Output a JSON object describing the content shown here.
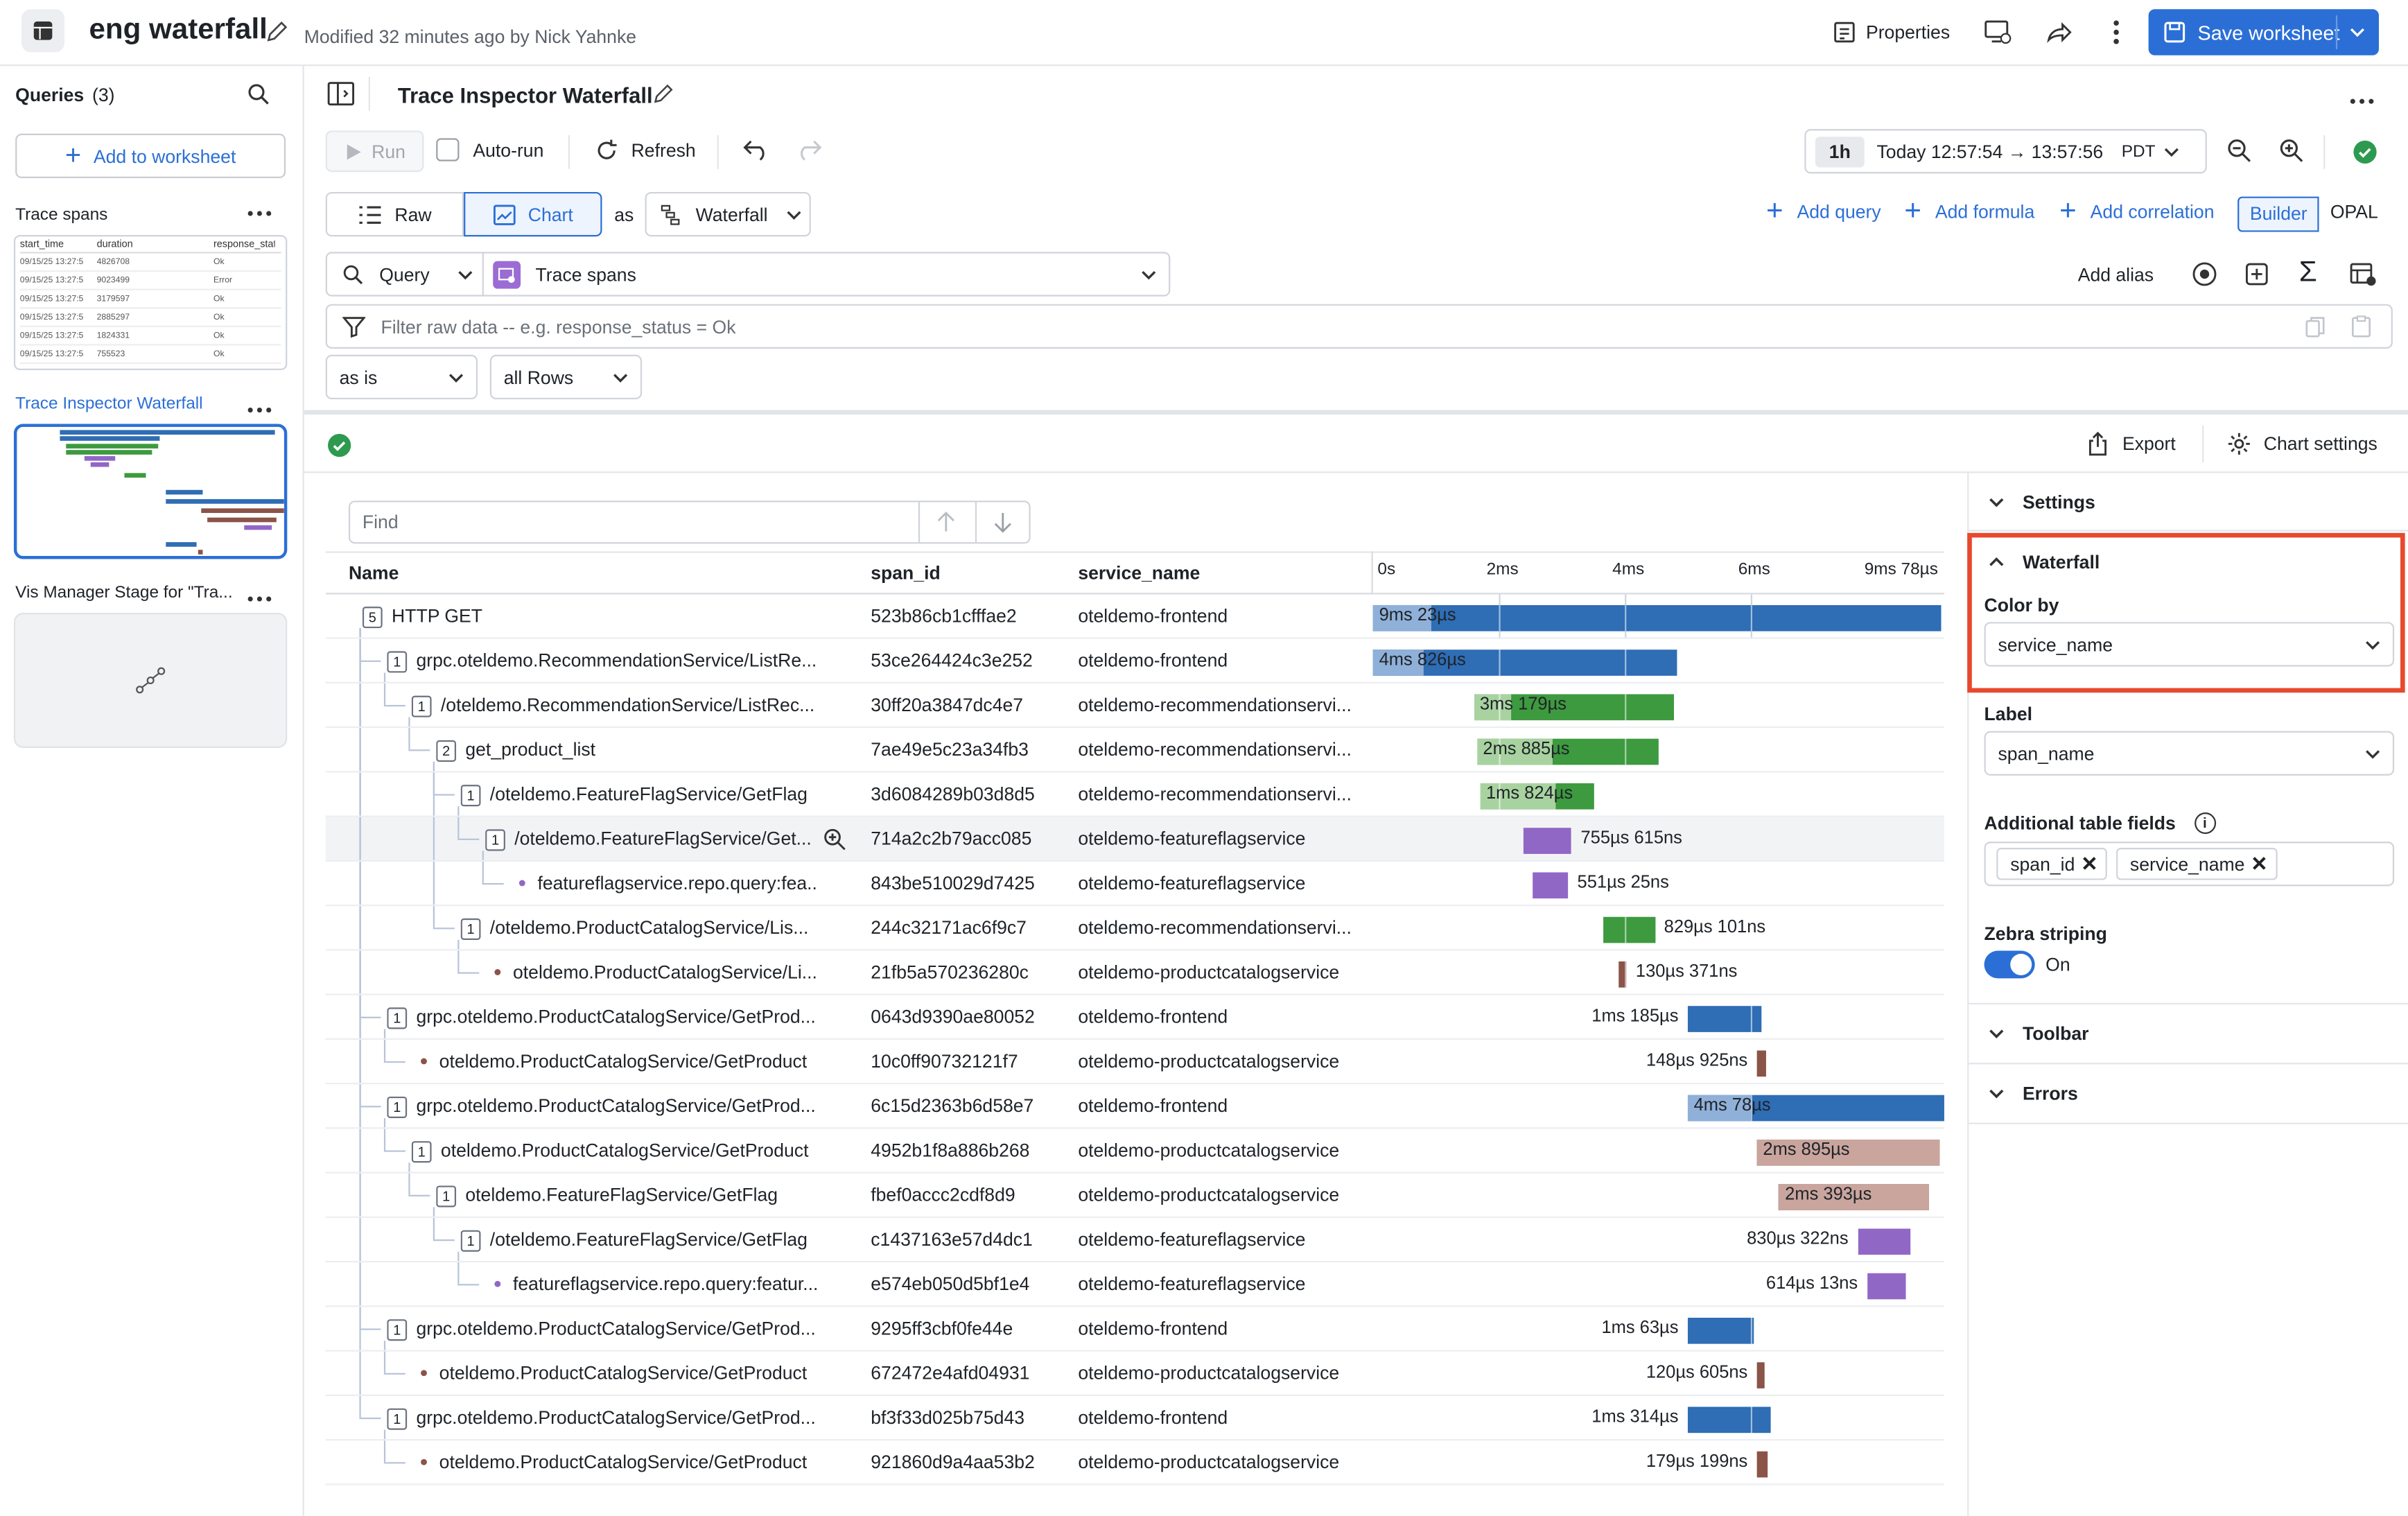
{
  "topbar": {
    "title": "eng waterfall",
    "modified": "Modified 32 minutes ago by Nick Yahnke",
    "properties": "Properties",
    "save": "Save worksheet"
  },
  "sidebar": {
    "queries_label": "Queries",
    "queries_count": "(3)",
    "add_to_worksheet": "Add to worksheet",
    "items": [
      {
        "label": "Trace spans"
      },
      {
        "label": "Trace Inspector Waterfall"
      },
      {
        "label": "Vis Manager Stage for \"Tra..."
      }
    ],
    "thumb_table": {
      "headers": [
        "start_time",
        "duration",
        "response_status"
      ],
      "rows": [
        [
          "09/15/25 13:27:5",
          "4826708",
          "Ok"
        ],
        [
          "09/15/25 13:27:5",
          "9023499",
          "Error"
        ],
        [
          "09/15/25 13:27:5",
          "3179597",
          "Ok"
        ],
        [
          "09/15/25 13:27:5",
          "2885297",
          "Ok"
        ],
        [
          "09/15/25 13:27:5",
          "1824331",
          "Ok"
        ],
        [
          "09/15/25 13:27:5",
          "755523",
          "Ok"
        ]
      ]
    }
  },
  "panel": {
    "title": "Trace Inspector Waterfall",
    "run": "Run",
    "autorun": "Auto-run",
    "refresh": "Refresh",
    "time_range_pill": "1h",
    "time_range": "Today 12:57:54 → 13:57:56",
    "timezone": "PDT",
    "raw": "Raw",
    "chart": "Chart",
    "as": "as",
    "viz_type": "Waterfall",
    "add_query": "Add query",
    "add_formula": "Add formula",
    "add_correlation": "Add correlation",
    "builder": "Builder",
    "opal": "OPAL",
    "query_label": "Query",
    "source": "Trace spans",
    "add_alias": "Add alias",
    "filter_placeholder": "Filter raw data -- e.g. response_status = Ok",
    "as_is": "as is",
    "all_rows": "all Rows",
    "export": "Export",
    "chart_settings": "Chart settings",
    "find_placeholder": "Find"
  },
  "table": {
    "headers": [
      "Name",
      "span_id",
      "service_name"
    ],
    "time_ticks": [
      "0s",
      "2ms",
      "4ms",
      "6ms",
      "9ms 78µs"
    ],
    "rows": [
      {
        "count": "5",
        "name": "HTTP GET",
        "span_id": "523b86cb1cfffae2",
        "service": "oteldemo-frontend",
        "start": 0,
        "dur": 9.023,
        "self": 0.23,
        "label": "9ms 23µs",
        "color": "#2f6db5",
        "light": "#8fb0d8"
      },
      {
        "count": "1",
        "name": "grpc.oteldemo.RecommendationService/ListRe...",
        "span_id": "53ce264424c3e252",
        "service": "oteldemo-frontend",
        "start": 0,
        "dur": 4.826,
        "self": 0.2,
        "label": "4ms 826µs",
        "color": "#2f6db5",
        "light": "#8fb0d8"
      },
      {
        "count": "1",
        "name": "/oteldemo.RecommendationService/ListRec...",
        "span_id": "30ff20a3847dc4e7",
        "service": "oteldemo-recommendationservi...",
        "start": 1.6,
        "dur": 3.179,
        "self": 0.15,
        "label": "3ms 179µs",
        "color": "#3d9a3f",
        "light": "#a8d3a0"
      },
      {
        "count": "2",
        "name": "get_product_list",
        "span_id": "7ae49e5c23a34fb3",
        "service": "oteldemo-recommendationservi...",
        "start": 1.65,
        "dur": 2.885,
        "self": 0.3,
        "label": "2ms 885µs",
        "color": "#3d9a3f",
        "light": "#a8d3a0"
      },
      {
        "count": "1",
        "name": "/oteldemo.FeatureFlagService/GetFlag",
        "span_id": "3d6084289b03d8d5",
        "service": "oteldemo-recommendationservi...",
        "start": 1.7,
        "dur": 1.824,
        "self": 0.3,
        "label": "1ms 824µs",
        "color": "#3d9a3f",
        "light": "#a8d3a0"
      },
      {
        "count": "1",
        "name": "/oteldemo.FeatureFlagService/Get...",
        "span_id": "714a2c2b79acc085",
        "service": "oteldemo-featureflagservice",
        "start": 2.4,
        "dur": 0.755,
        "self": 0,
        "label": "755µs 615ns",
        "color": "#9167c6",
        "light": "#c9b3e6"
      },
      {
        "count": "",
        "name": "featureflagservice.repo.query:fea...",
        "span_id": "843be510029d7425",
        "service": "oteldemo-featureflagservice",
        "start": 2.55,
        "dur": 0.551,
        "self": 0,
        "label": "551µs 25ns",
        "color": "#9167c6",
        "light": "#c9b3e6"
      },
      {
        "count": "1",
        "name": "/oteldemo.ProductCatalogService/Lis...",
        "span_id": "244c32171ac6f9c7",
        "service": "oteldemo-recommendationservi...",
        "start": 3.65,
        "dur": 0.829,
        "self": 0,
        "label": "829µs 101ns",
        "color": "#3d9a3f",
        "light": "#a8d3a0"
      },
      {
        "count": "",
        "name": "oteldemo.ProductCatalogService/Li...",
        "span_id": "21fb5a570236280c",
        "service": "oteldemo-productcatalogservice",
        "start": 3.9,
        "dur": 0.13,
        "self": 0,
        "label": "130µs 371ns",
        "color": "#8b5449",
        "light": "#c9a59d"
      },
      {
        "count": "1",
        "name": "grpc.oteldemo.ProductCatalogService/GetProd...",
        "span_id": "0643d9390ae80052",
        "service": "oteldemo-frontend",
        "start": 5.0,
        "dur": 1.185,
        "self": 0,
        "label": "1ms 185µs",
        "color": "#2f6db5",
        "light": "#8fb0d8"
      },
      {
        "count": "",
        "name": "oteldemo.ProductCatalogService/GetProduct",
        "span_id": "10c0ff90732121f7",
        "service": "oteldemo-productcatalogservice",
        "start": 6.1,
        "dur": 0.148,
        "self": 0,
        "label": "148µs 925ns",
        "color": "#8b5449",
        "light": "#c9a59d"
      },
      {
        "count": "1",
        "name": "grpc.oteldemo.ProductCatalogService/GetProd...",
        "span_id": "6c15d2363b6d58e7",
        "service": "oteldemo-frontend",
        "start": 5.0,
        "dur": 4.078,
        "self": 0.25,
        "label": "4ms 78µs",
        "color": "#2f6db5",
        "light": "#8fb0d8"
      },
      {
        "count": "1",
        "name": "oteldemo.ProductCatalogService/GetProduct",
        "span_id": "4952b1f8a886b268",
        "service": "oteldemo-productcatalogservice",
        "start": 6.1,
        "dur": 2.895,
        "self": 1.2,
        "label": "2ms 895µs",
        "color": "#8b5449",
        "light": "#c9a59d"
      },
      {
        "count": "1",
        "name": "oteldemo.FeatureFlagService/GetFlag",
        "span_id": "fbef0accc2cdf8d9",
        "service": "oteldemo-productcatalogservice",
        "start": 6.45,
        "dur": 2.393,
        "self": 1.0,
        "label": "2ms 393µs",
        "color": "#8b5449",
        "light": "#c9a59d"
      },
      {
        "count": "1",
        "name": "/oteldemo.FeatureFlagService/GetFlag",
        "span_id": "c1437163e57d4dc1",
        "service": "oteldemo-featureflagservice",
        "start": 7.7,
        "dur": 0.83,
        "self": 0,
        "label": "830µs 322ns",
        "color": "#9167c6",
        "light": "#c9b3e6"
      },
      {
        "count": "",
        "name": "featureflagservice.repo.query:featur...",
        "span_id": "e574eb050d5bf1e4",
        "service": "oteldemo-featureflagservice",
        "start": 7.85,
        "dur": 0.614,
        "self": 0,
        "label": "614µs 13ns",
        "color": "#9167c6",
        "light": "#c9b3e6"
      },
      {
        "count": "1",
        "name": "grpc.oteldemo.ProductCatalogService/GetProd...",
        "span_id": "9295ff3cbf0fe44e",
        "service": "oteldemo-frontend",
        "start": 5.0,
        "dur": 1.063,
        "self": 0,
        "label": "1ms 63µs",
        "color": "#2f6db5",
        "light": "#8fb0d8"
      },
      {
        "count": "",
        "name": "oteldemo.ProductCatalogService/GetProduct",
        "span_id": "672472e4afd04931",
        "service": "oteldemo-productcatalogservice",
        "start": 6.1,
        "dur": 0.12,
        "self": 0,
        "label": "120µs 605ns",
        "color": "#8b5449",
        "light": "#c9a59d"
      },
      {
        "count": "1",
        "name": "grpc.oteldemo.ProductCatalogService/GetProd...",
        "span_id": "bf3f33d025b75d43",
        "service": "oteldemo-frontend",
        "start": 5.0,
        "dur": 1.314,
        "self": 0,
        "label": "1ms 314µs",
        "color": "#2f6db5",
        "light": "#8fb0d8"
      },
      {
        "count": "",
        "name": "oteldemo.ProductCatalogService/GetProduct",
        "span_id": "921860d9a4aa53b2",
        "service": "oteldemo-productcatalogservice",
        "start": 6.1,
        "dur": 0.179,
        "self": 0,
        "label": "179µs 199ns",
        "color": "#8b5449",
        "light": "#c9a59d"
      }
    ]
  },
  "settings": {
    "settings_label": "Settings",
    "waterfall_label": "Waterfall",
    "color_by_label": "Color by",
    "color_by_value": "service_name",
    "label_label": "Label",
    "label_value": "span_name",
    "additional_fields_label": "Additional table fields",
    "field_tags": [
      "span_id",
      "service_name"
    ],
    "zebra_label": "Zebra striping",
    "zebra_value": "On",
    "toolbar_label": "Toolbar",
    "errors_label": "Errors"
  },
  "colors": {
    "accent": "#2b6fd6",
    "highlight": "#e8492d",
    "success": "#2e9a4f"
  }
}
